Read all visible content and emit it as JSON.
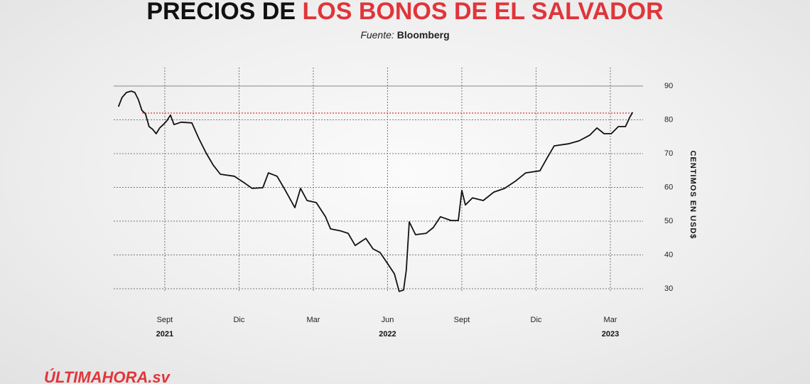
{
  "chart_data": {
    "type": "line",
    "title_black": "PRECIOS DE ",
    "title_red": "LOS BONOS DE EL SALVADOR",
    "source_label": "Fuente:",
    "source_name": "Bloomberg",
    "y_axis_label": "CENTIMOS EN USD$",
    "logo": "ÚLTIMAHORA.sv",
    "x": [
      2021.511,
      2021.523,
      2021.538,
      2021.554,
      2021.566,
      2021.578,
      2021.59,
      2021.602,
      2021.614,
      2021.626,
      2021.638,
      2021.65,
      2021.662,
      2021.674,
      2021.686,
      2021.698,
      2021.722,
      2021.758,
      2021.782,
      2021.806,
      2021.83,
      2021.854,
      2021.901,
      2021.937,
      2021.961,
      2021.997,
      2022.016,
      2022.045,
      2022.069,
      2022.105,
      2022.124,
      2022.146,
      2022.177,
      2022.208,
      2022.225,
      2022.26,
      2022.284,
      2022.308,
      2022.344,
      2022.368,
      2022.392,
      2022.416,
      2022.44,
      2022.456,
      2022.471,
      2022.48,
      2022.49,
      2022.511,
      2022.547,
      2022.571,
      2022.595,
      2022.631,
      2022.655,
      2022.667,
      2022.679,
      2022.703,
      2022.739,
      2022.775,
      2022.811,
      2022.847,
      2022.882,
      2022.93,
      2022.954,
      2022.978,
      2023.026,
      2023.062,
      2023.098,
      2023.122,
      2023.146,
      2023.17,
      2023.194,
      2023.218,
      2023.232,
      2023.242
    ],
    "series": [
      {
        "name": "Bonos El Salvador",
        "color": "#111111",
        "values": [
          83.9,
          86.6,
          88.1,
          88.5,
          88.1,
          86.0,
          82.8,
          81.8,
          78.0,
          77.2,
          75.9,
          77.6,
          78.6,
          79.7,
          81.4,
          78.6,
          79.3,
          79.1,
          74.4,
          70.2,
          66.6,
          63.9,
          63.3,
          61.2,
          59.7,
          59.9,
          64.3,
          63.3,
          59.7,
          54.0,
          59.7,
          56.1,
          55.5,
          51.3,
          47.7,
          47.1,
          46.4,
          42.8,
          44.9,
          41.8,
          40.7,
          37.6,
          34.4,
          29.2,
          29.6,
          35.5,
          49.8,
          46.0,
          46.4,
          48.1,
          51.3,
          50.2,
          50.2,
          59.1,
          54.8,
          56.9,
          56.1,
          58.6,
          59.7,
          61.8,
          64.3,
          64.9,
          68.7,
          72.3,
          72.9,
          73.8,
          75.5,
          77.6,
          75.9,
          75.9,
          78.0,
          78.0,
          80.7,
          82.2
        ]
      }
    ],
    "reference_line": {
      "value": 82,
      "color": "#e0353a"
    },
    "xlim": [
      2021.495,
      2023.277
    ],
    "xticks": [
      {
        "value": 2021.667,
        "label": "Sept"
      },
      {
        "value": 2021.917,
        "label": "Dic"
      },
      {
        "value": 2022.167,
        "label": "Mar"
      },
      {
        "value": 2022.417,
        "label": "Jun"
      },
      {
        "value": 2022.667,
        "label": "Sept"
      },
      {
        "value": 2022.917,
        "label": "Dic"
      },
      {
        "value": 2023.167,
        "label": "Mar"
      }
    ],
    "year_labels": [
      {
        "value": 2021.667,
        "label": "2021"
      },
      {
        "value": 2022.417,
        "label": "2022"
      },
      {
        "value": 2023.167,
        "label": "2023"
      }
    ],
    "ylim": [
      28,
      90
    ],
    "yticks": [
      30,
      40,
      50,
      60,
      70,
      80,
      90
    ],
    "grid": true
  }
}
